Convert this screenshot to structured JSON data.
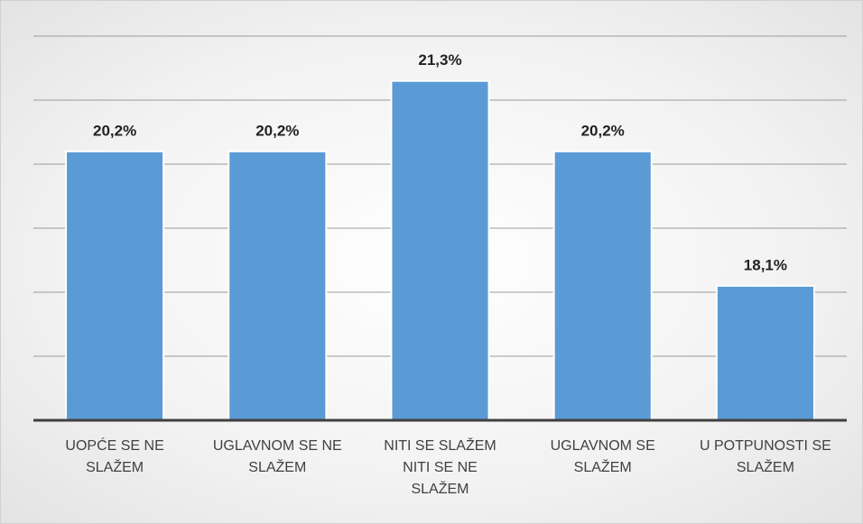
{
  "chart_data": {
    "type": "bar",
    "categories": [
      "UOPĆE SE NE SLAŽEM",
      "UGLAVNOM SE NE SLAŽEM",
      "NITI SE SLAŽEM NITI SE NE SLAŽEM",
      "UGLAVNOM SE SLAŽEM",
      "U POTPUNOSTI SE SLAŽEM"
    ],
    "values": [
      20.2,
      20.2,
      21.3,
      20.2,
      18.1
    ],
    "value_labels": [
      "20,2%",
      "20,2%",
      "21,3%",
      "20,2%",
      "18,1%"
    ],
    "color": "#5b9bd5",
    "ylim": [
      16,
      22
    ],
    "yticks": [
      16,
      17,
      18,
      19,
      20,
      21,
      22
    ],
    "grid": true
  }
}
